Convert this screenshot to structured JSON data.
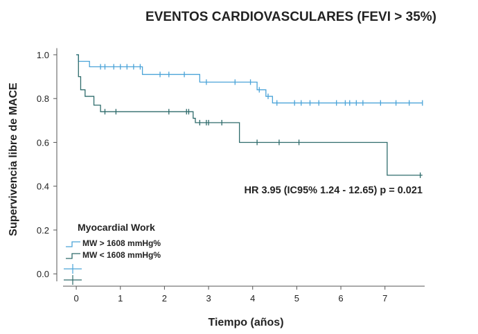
{
  "chart_data": {
    "type": "km",
    "title": "EVENTOS CARDIOVASCULARES (FEVI > 35%)",
    "y_label": "Supervivencia libre de MACE",
    "x_label": "Tiempo (años)",
    "annotation": "HR 3.95 (IC95% 1.24 - 12.65) p = 0.021",
    "legend_title": "Myocardial Work",
    "xlim": [
      -0.3,
      7.9
    ],
    "xticks": [
      0,
      1,
      2,
      3,
      4,
      5,
      6,
      7
    ],
    "ylim": [
      -0.05,
      1.03
    ],
    "yticks": [
      {
        "value": 0,
        "label": "0.0"
      },
      0.2,
      0.4,
      0.6,
      0.8,
      {
        "value": 1,
        "label": "1.0"
      }
    ],
    "series": [
      {
        "name": "MW > 1608 mmHg%",
        "color": "#4aa3d8",
        "x": [
          0,
          0.05,
          0.3,
          1.5,
          2.8,
          4.1,
          4.3,
          4.45,
          7.85
        ],
        "values": [
          1.0,
          0.97,
          0.945,
          0.91,
          0.875,
          0.84,
          0.81,
          0.78,
          0.78
        ],
        "censor_x": [
          0.55,
          0.65,
          0.85,
          1.0,
          1.15,
          1.3,
          1.45,
          1.9,
          2.1,
          2.45,
          2.95,
          3.6,
          3.95,
          4.15,
          4.35,
          4.55,
          4.95,
          5.1,
          5.3,
          5.5,
          5.9,
          6.1,
          6.2,
          6.35,
          6.5,
          6.9,
          7.25,
          7.55,
          7.85
        ]
      },
      {
        "name": "MW < 1608 mmHg%",
        "color": "#2e6b6b",
        "x": [
          0,
          0.05,
          0.1,
          0.2,
          0.4,
          0.55,
          2.65,
          2.7,
          3.7,
          7.05,
          7.85
        ],
        "values": [
          1.0,
          0.9,
          0.84,
          0.81,
          0.77,
          0.74,
          0.71,
          0.69,
          0.6,
          0.45,
          0.45
        ],
        "censor_x": [
          0.65,
          0.9,
          2.1,
          2.5,
          2.55,
          2.8,
          2.95,
          3.0,
          3.3,
          4.1,
          4.6,
          5.05,
          7.8
        ]
      }
    ]
  }
}
